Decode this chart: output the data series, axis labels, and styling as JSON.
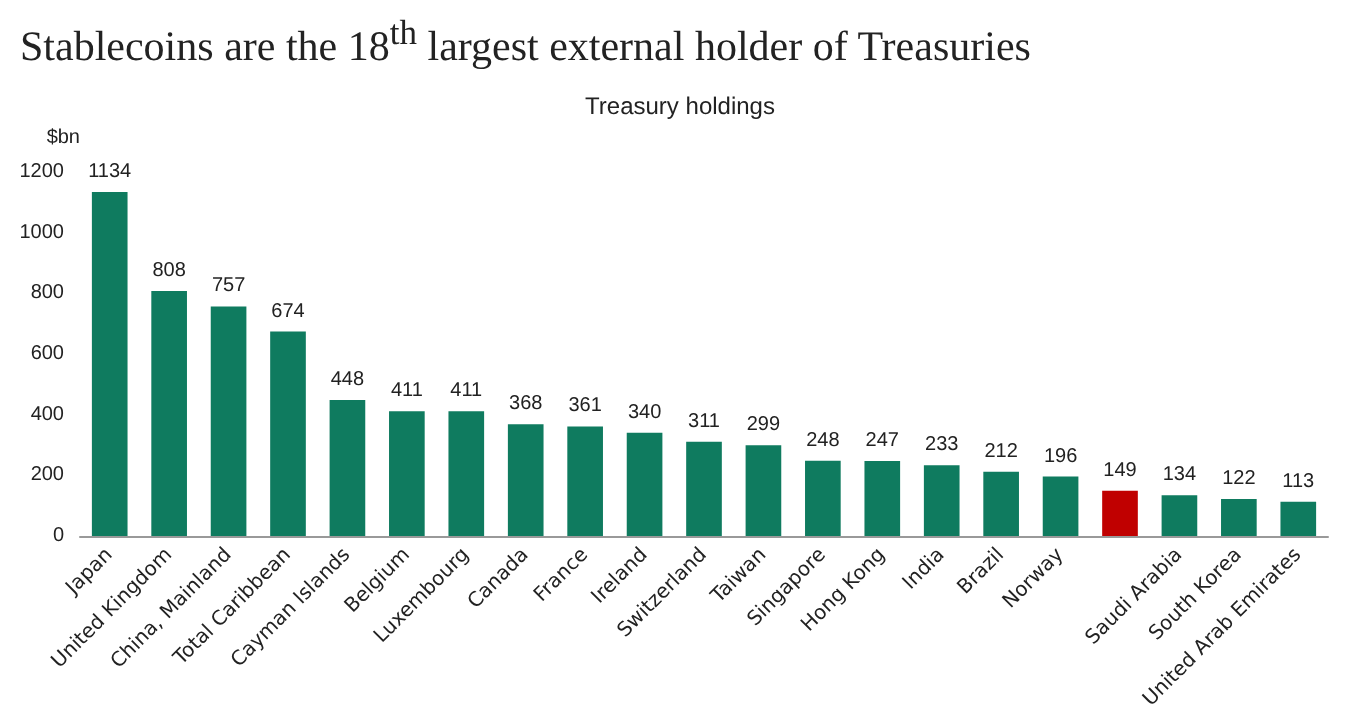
{
  "chart_data": {
    "type": "bar",
    "title": "Stablecoins are the 18$^{th}$ largest external holder of Treasuries",
    "subtitle": "Treasury holdings",
    "ylabel": "$bn",
    "categories": [
      "Japan",
      "United Kingdom",
      "China, Mainland",
      "Total Caribbean",
      "Cayman Islands",
      "Belgium",
      "Luxembourg",
      "Canada",
      "France",
      "Ireland",
      "Switzerland",
      "Taiwan",
      "Singapore",
      "Hong Kong",
      "India",
      "Brazil",
      "Norway",
      null,
      "Saudi Arabia",
      "South Korea",
      "United Arab Emirates"
    ],
    "values": [
      1134,
      808,
      757,
      674,
      448,
      411,
      411,
      368,
      361,
      340,
      311,
      299,
      248,
      247,
      233,
      212,
      196,
      149,
      134,
      122,
      113
    ],
    "colors": [
      "#0f7b5f",
      "#0f7b5f",
      "#0f7b5f",
      "#0f7b5f",
      "#0f7b5f",
      "#0f7b5f",
      "#0f7b5f",
      "#0f7b5f",
      "#0f7b5f",
      "#0f7b5f",
      "#0f7b5f",
      "#0f7b5f",
      "#0f7b5f",
      "#0f7b5f",
      "#0f7b5f",
      "#0f7b5f",
      "#0f7b5f",
      "#c00000",
      "#0f7b5f",
      "#0f7b5f",
      "#0f7b5f"
    ],
    "ylim": [
      0,
      1200
    ],
    "yticks": [
      0,
      200,
      400,
      600,
      800,
      1000,
      1200
    ],
    "data_labels": true,
    "grid": false
  }
}
